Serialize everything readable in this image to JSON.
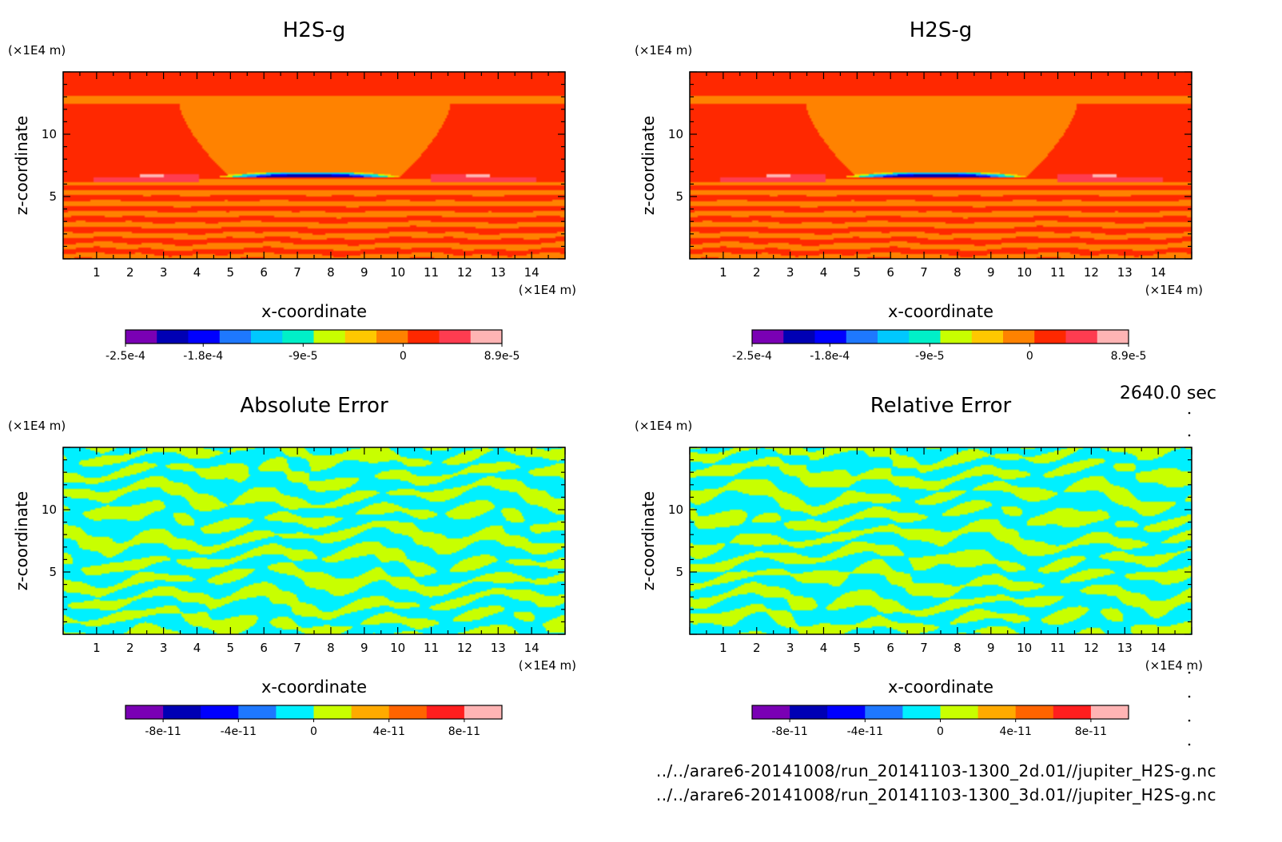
{
  "time_label": "2640.0 sec",
  "files": [
    "../../arare6-20141008/run_20141103-1300_2d.01//jupiter_H2S-g.nc",
    "../../arare6-20141008/run_20141103-1300_3d.01//jupiter_H2S-g.nc"
  ],
  "chart_data": [
    {
      "type": "heatmap",
      "title": "H2S-g",
      "xlabel": "x-coordinate",
      "ylabel": "z-coordinate",
      "x_unit": "(×1E4 m)",
      "z_unit": "(×1E4 m)",
      "x_ticks": [
        1,
        2,
        3,
        4,
        5,
        6,
        7,
        8,
        9,
        10,
        11,
        12,
        13,
        14
      ],
      "z_ticks": [
        5,
        10
      ],
      "xlim": [
        0,
        15
      ],
      "zlim": [
        0,
        15
      ],
      "pattern": "field",
      "colorbar": {
        "colors": [
          "#7a00b4",
          "#0000b4",
          "#0000ff",
          "#1e78ff",
          "#00c8ff",
          "#00f0c8",
          "#c8ff00",
          "#ffc800",
          "#ff8200",
          "#ff2800",
          "#ff3c50",
          "#ffb4b4"
        ],
        "tick_labels": [
          "-2.5e-4",
          "-1.8e-4",
          "-9e-5",
          "0",
          "8.9e-5"
        ],
        "tick_values": [
          -0.00025,
          -0.00018,
          -9e-05,
          0,
          8.9e-05
        ],
        "range": [
          -0.00025,
          8.9e-05
        ],
        "levels": 12
      }
    },
    {
      "type": "heatmap",
      "title": "H2S-g",
      "xlabel": "x-coordinate",
      "ylabel": "z-coordinate",
      "x_unit": "(×1E4 m)",
      "z_unit": "(×1E4 m)",
      "x_ticks": [
        1,
        2,
        3,
        4,
        5,
        6,
        7,
        8,
        9,
        10,
        11,
        12,
        13,
        14
      ],
      "z_ticks": [
        5,
        10
      ],
      "xlim": [
        0,
        15
      ],
      "zlim": [
        0,
        15
      ],
      "pattern": "field",
      "colorbar": {
        "colors": [
          "#7a00b4",
          "#0000b4",
          "#0000ff",
          "#1e78ff",
          "#00c8ff",
          "#00f0c8",
          "#c8ff00",
          "#ffc800",
          "#ff8200",
          "#ff2800",
          "#ff3c50",
          "#ffb4b4"
        ],
        "tick_labels": [
          "-2.5e-4",
          "-1.8e-4",
          "-9e-5",
          "0",
          "8.9e-5"
        ],
        "tick_values": [
          -0.00025,
          -0.00018,
          -9e-05,
          0,
          8.9e-05
        ],
        "range": [
          -0.00025,
          8.9e-05
        ],
        "levels": 12
      }
    },
    {
      "type": "heatmap",
      "title": "Absolute Error",
      "xlabel": "x-coordinate",
      "ylabel": "z-coordinate",
      "x_unit": "(×1E4 m)",
      "z_unit": "(×1E4 m)",
      "x_ticks": [
        1,
        2,
        3,
        4,
        5,
        6,
        7,
        8,
        9,
        10,
        11,
        12,
        13,
        14
      ],
      "z_ticks": [
        5,
        10
      ],
      "xlim": [
        0,
        15
      ],
      "zlim": [
        0,
        15
      ],
      "pattern": "noise",
      "colorbar": {
        "colors": [
          "#7a00b4",
          "#0000b4",
          "#0000ff",
          "#1e78ff",
          "#00f0ff",
          "#c8ff00",
          "#ffaa00",
          "#ff6400",
          "#ff1e1e",
          "#ffb4b4"
        ],
        "tick_labels": [
          "-8e-11",
          "-4e-11",
          "0",
          "4e-11",
          "8e-11"
        ],
        "tick_values": [
          -8e-11,
          -4e-11,
          0,
          4e-11,
          8e-11
        ],
        "range": [
          -1e-10,
          1e-10
        ],
        "levels": 10
      }
    },
    {
      "type": "heatmap",
      "title": "Relative Error",
      "xlabel": "x-coordinate",
      "ylabel": "z-coordinate",
      "x_unit": "(×1E4 m)",
      "z_unit": "(×1E4 m)",
      "x_ticks": [
        1,
        2,
        3,
        4,
        5,
        6,
        7,
        8,
        9,
        10,
        11,
        12,
        13,
        14
      ],
      "z_ticks": [
        5,
        10
      ],
      "xlim": [
        0,
        15
      ],
      "zlim": [
        0,
        15
      ],
      "pattern": "noise",
      "colorbar": {
        "colors": [
          "#7a00b4",
          "#0000b4",
          "#0000ff",
          "#1e78ff",
          "#00f0ff",
          "#c8ff00",
          "#ffaa00",
          "#ff6400",
          "#ff1e1e",
          "#ffb4b4"
        ],
        "tick_labels": [
          "-8e-11",
          "-4e-11",
          "0",
          "4e-11",
          "8e-11"
        ],
        "tick_values": [
          -8e-11,
          -4e-11,
          0,
          4e-11,
          8e-11
        ],
        "range": [
          -1e-10,
          1e-10
        ],
        "levels": 10
      }
    }
  ]
}
